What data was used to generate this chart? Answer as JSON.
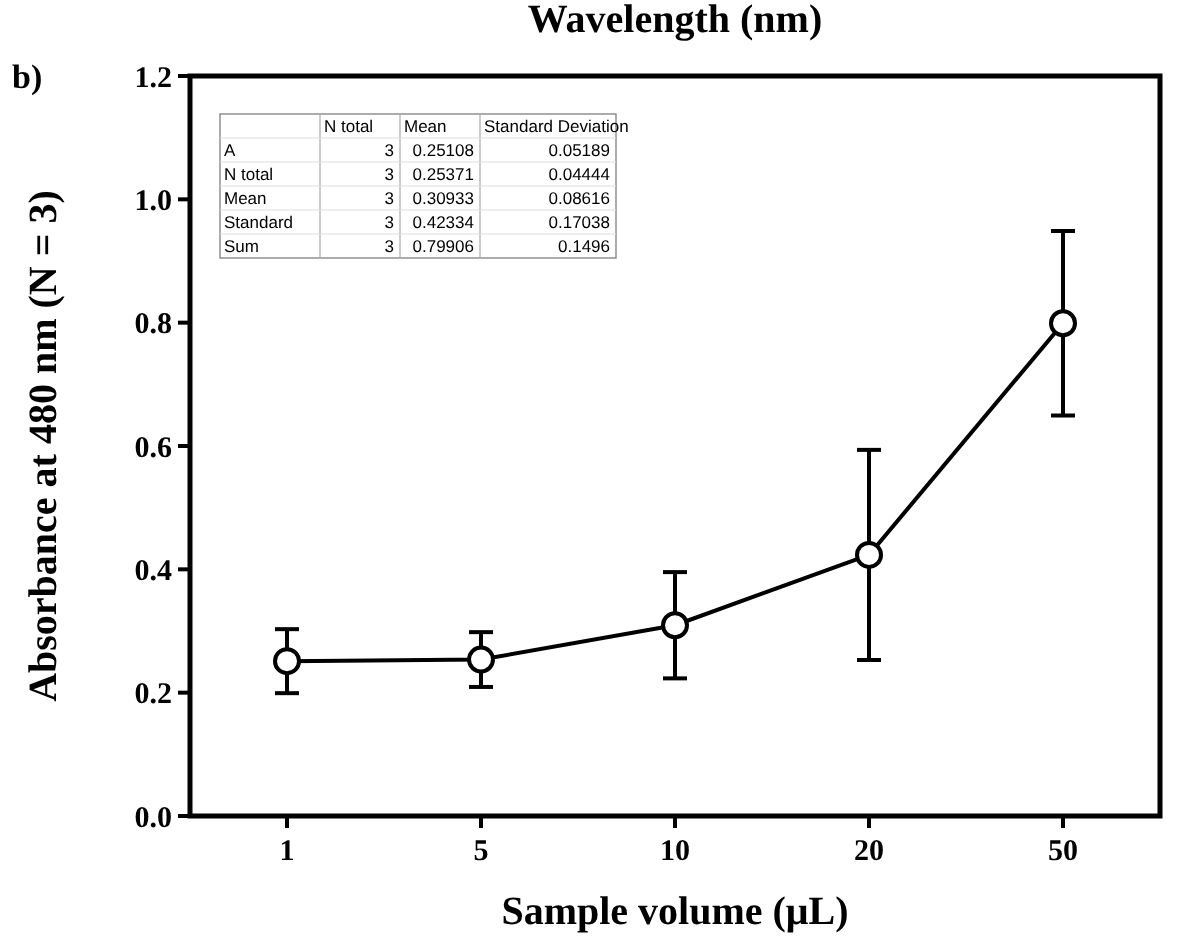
{
  "chart_data": {
    "type": "line",
    "title": "Wavelength (nm)",
    "xlabel": "Sample volume (μL)",
    "ylabel": "Absorbance at 480 nm (N = 3)",
    "categories": [
      "1",
      "5",
      "10",
      "20",
      "50"
    ],
    "series": [
      {
        "color": "#000000",
        "values": [
          0.25108,
          0.25371,
          0.30933,
          0.42334,
          0.79906
        ],
        "errors": [
          0.05189,
          0.04444,
          0.08616,
          0.17038,
          0.1496
        ]
      }
    ],
    "ylim": [
      0,
      1.2
    ],
    "yticks": [
      {
        "value": 0,
        "label": "0.0"
      },
      {
        "value": 0.2,
        "label": "0.2"
      },
      {
        "value": 0.4,
        "label": "0.4"
      },
      {
        "value": 0.6,
        "label": "0.6"
      },
      {
        "value": 0.8,
        "label": "0.8"
      },
      {
        "value": 1,
        "label": "1.0"
      },
      {
        "value": 1.2,
        "label": "1.2"
      }
    ],
    "marker": "circle",
    "line_style": "solid",
    "grid": false,
    "annotations": [
      "b)",
      "N total",
      "Mean",
      "Standard Deviation",
      "A",
      "3",
      "0.25108",
      "0.05189",
      "N total",
      "3",
      "0.25371",
      "0.04444",
      "Mean",
      "3",
      "0.30933",
      "0.08616",
      "Standard",
      "3",
      "0.42334",
      "0.17038",
      "Sum",
      "3",
      "0.79906",
      "0.1496"
    ]
  }
}
